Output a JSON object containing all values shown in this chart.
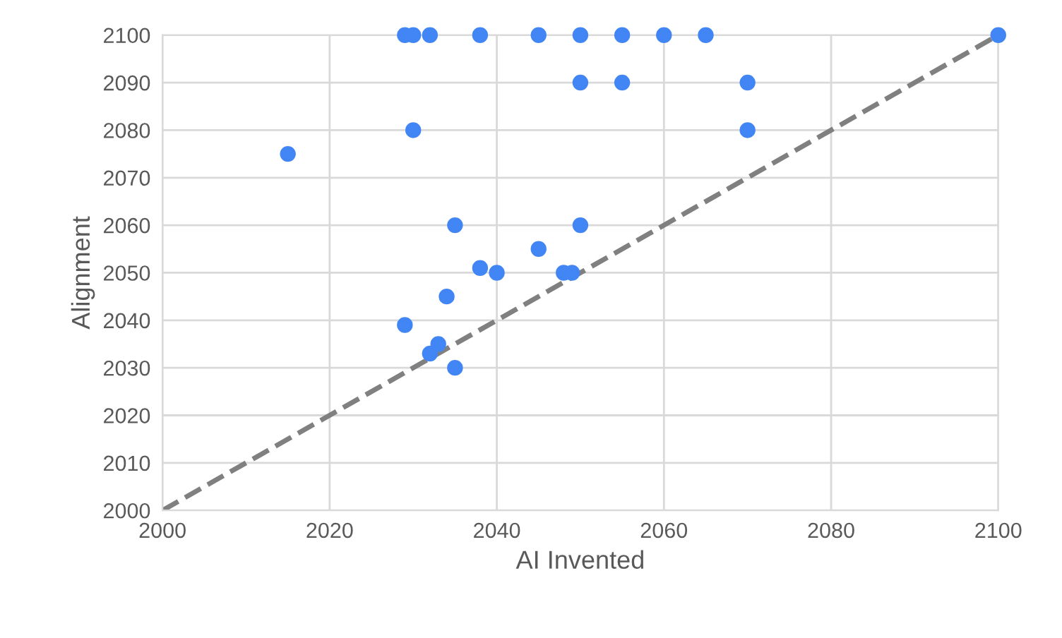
{
  "chart_data": {
    "type": "scatter",
    "xlabel": "AI Invented",
    "ylabel": "Alignment",
    "xlim": [
      2000,
      2100
    ],
    "xticks": [
      2000,
      2020,
      2040,
      2060,
      2080,
      2100
    ],
    "ylim": [
      2000,
      2100
    ],
    "yticks": [
      2000,
      2010,
      2020,
      2030,
      2040,
      2050,
      2060,
      2070,
      2080,
      2090,
      2100
    ],
    "grid": true,
    "legend": false,
    "series": [
      {
        "color": "#4285f4",
        "marker": "circle",
        "x": [
          2029,
          2030,
          2032,
          2038,
          2045,
          2050,
          2055,
          2060,
          2065,
          2100,
          2050,
          2055,
          2070,
          2030,
          2070,
          2015,
          2035,
          2050,
          2045,
          2038,
          2040,
          2048,
          2049,
          2034,
          2029,
          2033,
          2032,
          2035
        ],
        "values": [
          2100,
          2100,
          2100,
          2100,
          2100,
          2100,
          2100,
          2100,
          2100,
          2100,
          2090,
          2090,
          2090,
          2080,
          2080,
          2075,
          2060,
          2060,
          2055,
          2051,
          2050,
          2050,
          2050,
          2045,
          2039,
          2035,
          2033,
          2030
        ]
      },
      {
        "type": "line",
        "color": "#808080",
        "line_style": "dashed",
        "marker": "none",
        "x": [
          2000,
          2100
        ],
        "values": [
          2000,
          2100
        ]
      }
    ]
  }
}
